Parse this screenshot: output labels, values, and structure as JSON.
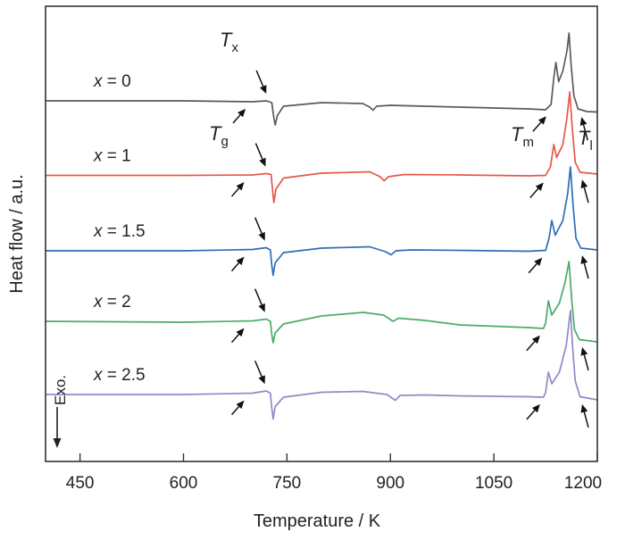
{
  "chart_data": {
    "type": "line",
    "title": "",
    "xlabel": "Temperature / K",
    "ylabel": "Heat flow / a.u.",
    "xlim": [
      400,
      1200
    ],
    "ylim": [
      0,
      102
    ],
    "xticks": [
      450,
      600,
      750,
      900,
      1050,
      1200
    ],
    "yticks": [],
    "grid": false,
    "legend": "inline labels left of each curve",
    "exo_label": "Exo.",
    "annotations": {
      "Tx": {
        "main": "T",
        "sub": "x"
      },
      "Tg": {
        "main": "T",
        "sub": "g"
      },
      "Tm": {
        "main": "T",
        "sub": "m"
      },
      "Tl": {
        "main": "T",
        "sub": "l"
      }
    },
    "series": [
      {
        "var": "x",
        "eq": " = 0",
        "color": "#5a5a5a",
        "Tg": 690,
        "Tx": 720,
        "Tm": 1126,
        "Tl": 1177,
        "x": [
          400,
          600,
          700,
          720,
          728,
          731,
          733,
          736,
          745,
          800,
          860,
          870,
          875,
          880,
          900,
          1000,
          1100,
          1125,
          1133,
          1137,
          1140,
          1144,
          1150,
          1156,
          1159,
          1162,
          1166,
          1172,
          1185,
          1200
        ],
        "y": [
          80.8,
          80.8,
          80.6,
          80.8,
          80.4,
          77,
          75.4,
          77.5,
          79.6,
          80.4,
          80.2,
          79.4,
          78.7,
          79.6,
          79.8,
          79.4,
          79.0,
          78.8,
          80,
          86,
          89.4,
          85.1,
          87.5,
          92,
          96,
          89,
          82,
          79,
          78.4,
          78.3
        ]
      },
      {
        "var": "x",
        "eq": " = 1",
        "color": "#e8574a",
        "Tg": 688,
        "Tx": 719,
        "Tm": 1122,
        "Tl": 1178,
        "x": [
          400,
          600,
          700,
          720,
          727,
          729,
          731,
          734,
          745,
          800,
          870,
          885,
          891,
          897,
          920,
          1000,
          1100,
          1125,
          1132,
          1137,
          1141,
          1150,
          1156,
          1160,
          1164,
          1168,
          1175,
          1200
        ],
        "y": [
          64.1,
          64.1,
          64.2,
          64.5,
          64.3,
          61,
          58,
          61,
          63.5,
          64.6,
          64.9,
          63.8,
          62.9,
          63.8,
          64.3,
          64.2,
          64.0,
          64.1,
          66,
          71,
          68.1,
          71,
          77,
          82.8,
          74,
          67,
          64.8,
          64.4
        ]
      },
      {
        "var": "x",
        "eq": " = 1.5",
        "color": "#2f6db5",
        "Tg": 688,
        "Tx": 718,
        "Tm": 1120,
        "Tl": 1178,
        "x": [
          400,
          600,
          700,
          720,
          726,
          728,
          730,
          733,
          745,
          800,
          870,
          893,
          901,
          908,
          930,
          1000,
          1100,
          1125,
          1130,
          1134,
          1139,
          1150,
          1157,
          1161,
          1165,
          1169,
          1176,
          1200
        ],
        "y": [
          47.2,
          47.2,
          47.5,
          47.9,
          47.4,
          44,
          41.7,
          44.5,
          46.8,
          47.8,
          48.1,
          47.0,
          46.3,
          47.2,
          47.4,
          47.3,
          47.1,
          47.3,
          50,
          54,
          50.7,
          54,
          60,
          66,
          57,
          50,
          47.8,
          47.4
        ]
      },
      {
        "var": "x",
        "eq": " = 2",
        "color": "#4caa6c",
        "Tg": 688,
        "Tx": 718,
        "Tm": 1117,
        "Tl": 1178,
        "x": [
          400,
          600,
          700,
          720,
          726,
          728,
          730,
          733,
          745,
          800,
          861,
          890,
          904,
          912,
          950,
          1000,
          1100,
          1122,
          1125,
          1129,
          1134,
          1145,
          1153,
          1159,
          1163,
          1167,
          1174,
          1200
        ],
        "y": [
          31.4,
          31.2,
          31.5,
          31.9,
          31.4,
          28.5,
          26.6,
          28.8,
          30.8,
          32.6,
          33.4,
          32.8,
          31.4,
          32.1,
          31.6,
          30.6,
          30.0,
          29.8,
          31,
          36,
          32.8,
          35.5,
          40,
          44.8,
          36,
          29.5,
          27.3,
          26.8
        ]
      },
      {
        "var": "x",
        "eq": " = 2.5",
        "color": "#9389c6",
        "Tg": 688,
        "Tx": 718,
        "Tm": 1117,
        "Tl": 1178,
        "x": [
          400,
          600,
          700,
          720,
          726,
          728,
          730,
          733,
          745,
          800,
          860,
          895,
          907,
          914,
          950,
          1000,
          1100,
          1122,
          1125,
          1129,
          1134,
          1145,
          1155,
          1161,
          1164,
          1168,
          1175,
          1200
        ],
        "y": [
          15.0,
          15.0,
          15.3,
          15.8,
          15.3,
          12,
          9.5,
          12.3,
          14.4,
          15.5,
          15.7,
          15.0,
          13.7,
          14.8,
          14.9,
          14.7,
          14.5,
          14.4,
          15.5,
          20,
          17.4,
          20,
          26,
          33.8,
          26,
          18,
          14.5,
          13.8
        ]
      }
    ]
  }
}
